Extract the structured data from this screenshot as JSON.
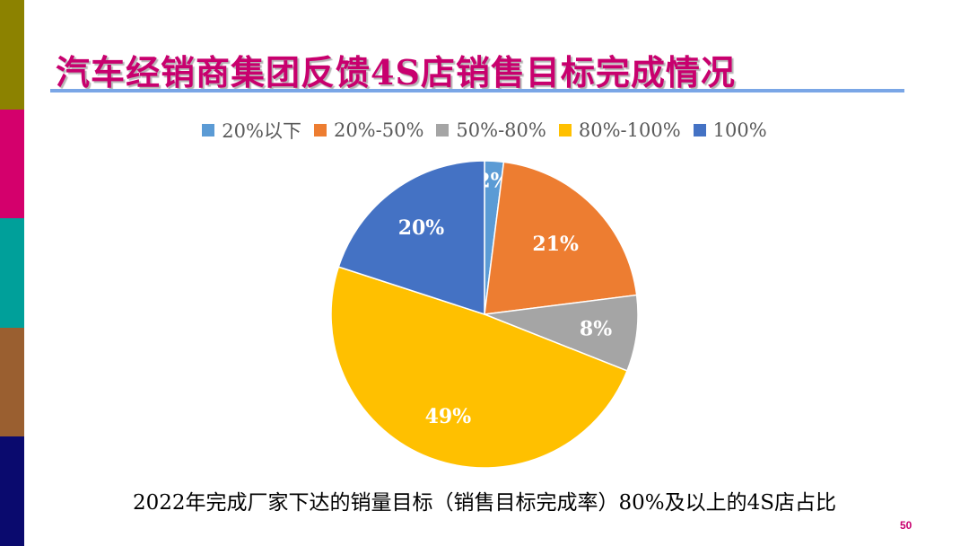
{
  "slide": {
    "title": "汽车经销商集团反馈4S店销售目标完成情况",
    "caption": "2022年完成厂家下达的销量目标（销售目标完成率）80%及以上的4S店占比",
    "page_number": "50",
    "accent_title": "#c8006e",
    "rule_color": "#7aa6e6",
    "sidebar_colors": [
      "#8c8200",
      "#d4006c",
      "#00a09a",
      "#9a5f30",
      "#0a0a6e"
    ]
  },
  "chart_data": {
    "type": "pie",
    "title": "",
    "legend_position": "top",
    "categories": [
      "20%以下",
      "20%-50%",
      "50%-80%",
      "80%-100%",
      "100%"
    ],
    "values": [
      2,
      21,
      8,
      49,
      20
    ],
    "labels": [
      "2%",
      "21%",
      "8%",
      "49%",
      "20%"
    ],
    "colors": [
      "#5b9bd5",
      "#ed7d31",
      "#a5a5a5",
      "#ffc000",
      "#4472c4"
    ]
  }
}
